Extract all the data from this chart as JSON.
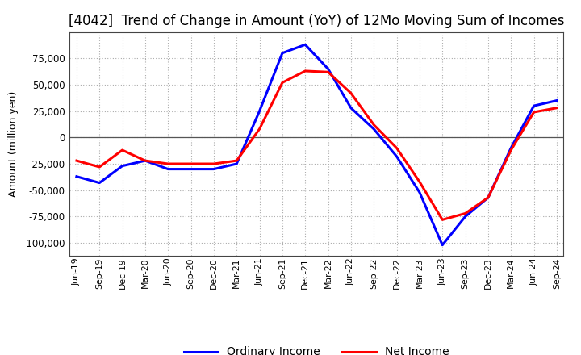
{
  "title": "[4042]  Trend of Change in Amount (YoY) of 12Mo Moving Sum of Incomes",
  "ylabel": "Amount (million yen)",
  "x_labels": [
    "Jun-19",
    "Sep-19",
    "Dec-19",
    "Mar-20",
    "Jun-20",
    "Sep-20",
    "Dec-20",
    "Mar-21",
    "Jun-21",
    "Sep-21",
    "Dec-21",
    "Mar-22",
    "Jun-22",
    "Sep-22",
    "Dec-22",
    "Mar-23",
    "Jun-23",
    "Sep-23",
    "Dec-23",
    "Mar-24",
    "Jun-24",
    "Sep-24"
  ],
  "ordinary_income": [
    -37000,
    -43000,
    -27000,
    -22000,
    -30000,
    -30000,
    -30000,
    -25000,
    25000,
    80000,
    88000,
    65000,
    28000,
    8000,
    -18000,
    -52000,
    -102000,
    -75000,
    -57000,
    -10000,
    30000,
    35000
  ],
  "net_income": [
    -22000,
    -28000,
    -12000,
    -22000,
    -25000,
    -25000,
    -25000,
    -22000,
    8000,
    52000,
    63000,
    62000,
    42000,
    12000,
    -10000,
    -42000,
    -78000,
    -72000,
    -57000,
    -12000,
    24000,
    28000
  ],
  "ordinary_color": "#0000FF",
  "net_color": "#FF0000",
  "background_color": "#FFFFFF",
  "plot_bg_color": "#FFFFFF",
  "ylim": [
    -112000,
    100000
  ],
  "yticks": [
    -100000,
    -75000,
    -50000,
    -25000,
    0,
    25000,
    50000,
    75000
  ],
  "grid_color": "#aaaaaa",
  "title_fontsize": 12,
  "legend_labels": [
    "Ordinary Income",
    "Net Income"
  ],
  "line_width": 2.2
}
